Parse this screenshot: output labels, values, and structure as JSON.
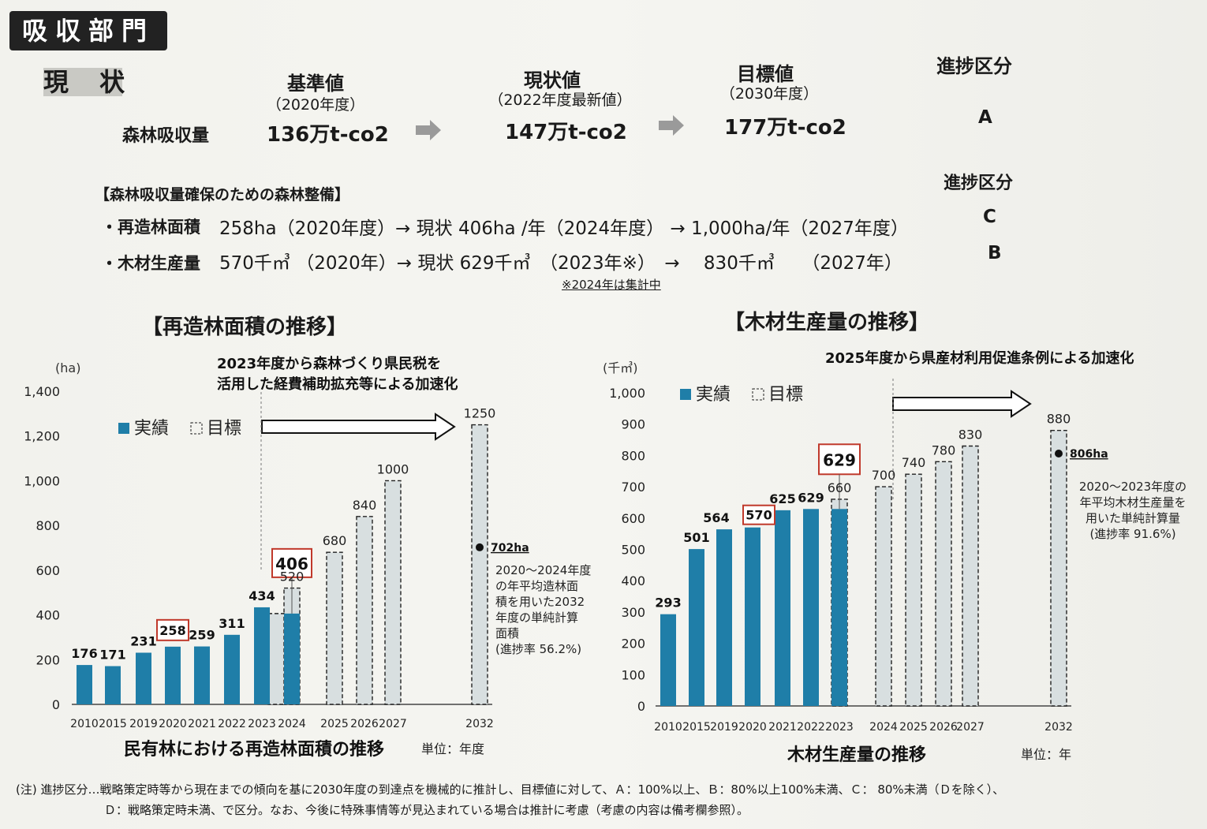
{
  "header": {
    "title": "吸収部門"
  },
  "status": {
    "label": "現 状",
    "row_label": "森林吸収量",
    "columns": [
      {
        "head": "基準値",
        "sub": "（2020年度）",
        "value": "136万t-co2"
      },
      {
        "head": "現状値",
        "sub": "（2022年度最新値）",
        "value": "147万t-co2"
      },
      {
        "head": "目標値",
        "sub": "（2030年度）",
        "value": "177万t-co2"
      },
      {
        "head": "進捗区分",
        "sub": "",
        "value": "A"
      }
    ]
  },
  "maintenance": {
    "section_title": "【森林吸収量確保のための森林整備】",
    "grade_header": "進捗区分",
    "rows": [
      {
        "label": "・再造林面積",
        "text": "258ha（2020年度）→ 現状 406ha /年（2024年度） → 1,000ha/年（2027年度）",
        "grade": "C"
      },
      {
        "label": "・木材生産量",
        "text": "570千㎥ （2020年）→ 現状 629千㎥　（2023年※）　→　 830千㎥　　（2027年）",
        "grade": "B"
      }
    ],
    "note": "※2024年は集計中"
  },
  "legend": {
    "actual": "実績",
    "target": "目標"
  },
  "chart_data": [
    {
      "type": "bar",
      "title": "【再造林面積の推移】",
      "subtitle": "民有林における再造林面積の推移",
      "unit_note": "単位：年度",
      "ylabel": "(ha)",
      "ylim": [
        0,
        1400
      ],
      "yticks": [
        "0",
        "200",
        "400",
        "600",
        "800",
        "1,000",
        "1,200",
        "1,400"
      ],
      "categories": [
        "2010",
        "2015",
        "2019",
        "2020",
        "2021",
        "2022",
        "2023",
        "2024",
        "2025",
        "2026",
        "2027",
        "2032"
      ],
      "series": [
        {
          "name": "実績",
          "values": [
            176,
            171,
            231,
            258,
            259,
            311,
            434,
            406,
            null,
            null,
            null,
            null
          ]
        },
        {
          "name": "目標",
          "values": [
            null,
            null,
            null,
            null,
            null,
            null,
            null,
            520,
            680,
            840,
            1000,
            1250
          ]
        }
      ],
      "data_labels": {
        "actual": [
          "176",
          "171",
          "231",
          "258",
          "259",
          "311",
          "434",
          "406"
        ],
        "target": [
          "520",
          "680",
          "840",
          "1000",
          "1250"
        ]
      },
      "extra_target": {
        "category": "2023",
        "value": 406
      },
      "highlight": [
        "258",
        "406"
      ],
      "arrow_text": [
        "2023年度から森林づくり県民税を",
        "活用した経費補助拡充等による加速化"
      ],
      "point": {
        "category": "2032",
        "value": 702,
        "label": "702ha"
      },
      "annotation": [
        "2020～2024年度",
        "の年平均造林面",
        "積を用いた2032",
        "年度の単純計算",
        "面積",
        "(進捗率 56.2%)"
      ],
      "colors": {
        "actual": "#1f7ea8",
        "target_fill": "#d8dfe0"
      }
    },
    {
      "type": "bar",
      "title": "【木材生産量の推移】",
      "subtitle": "木材生産量の推移",
      "unit_note": "単位：年",
      "ylabel": "(千㎥)",
      "ylim": [
        0,
        1000
      ],
      "yticks": [
        "0",
        "100",
        "200",
        "300",
        "400",
        "500",
        "600",
        "700",
        "800",
        "900",
        "1,000"
      ],
      "categories": [
        "2010",
        "2015",
        "2019",
        "2020",
        "2021",
        "2022",
        "2023",
        "2024",
        "2025",
        "2026",
        "2027",
        "2032"
      ],
      "series": [
        {
          "name": "実績",
          "values": [
            293,
            501,
            564,
            570,
            625,
            629,
            629,
            null,
            null,
            null,
            null,
            null
          ]
        },
        {
          "name": "目標",
          "values": [
            null,
            null,
            null,
            null,
            null,
            null,
            660,
            700,
            740,
            780,
            830,
            880
          ]
        }
      ],
      "data_labels": {
        "actual": [
          "293",
          "501",
          "564",
          "570",
          "625",
          "629",
          "629"
        ],
        "target": [
          "660",
          "700",
          "740",
          "780",
          "830",
          "880"
        ]
      },
      "highlight": [
        "570",
        "629"
      ],
      "arrow_text": [
        "2025年度から県産材利用促進条例による加速化"
      ],
      "point": {
        "category": "2032",
        "value": 806,
        "label": "806ha"
      },
      "annotation": [
        "2020～2023年度の",
        "年平均木材生産量を",
        "用いた単純計算量",
        "(進捗率 91.6%)"
      ],
      "colors": {
        "actual": "#1f7ea8",
        "target_fill": "#d8dfe0"
      }
    }
  ],
  "footnote": {
    "line1": "(注) 進捗区分…戦略策定時等から現在までの傾向を基に2030年度の到達点を機械的に推計し、目標値に対して、Ａ：100%以上、Ｂ：80%以上100%未満、Ｃ： 80%未満（Ｄを除く）、",
    "line2": "Ｄ：戦略策定時未満、で区分。なお、今後に特殊事情等が見込まれている場合は推計に考慮（考慮の内容は備考欄参照）。"
  }
}
